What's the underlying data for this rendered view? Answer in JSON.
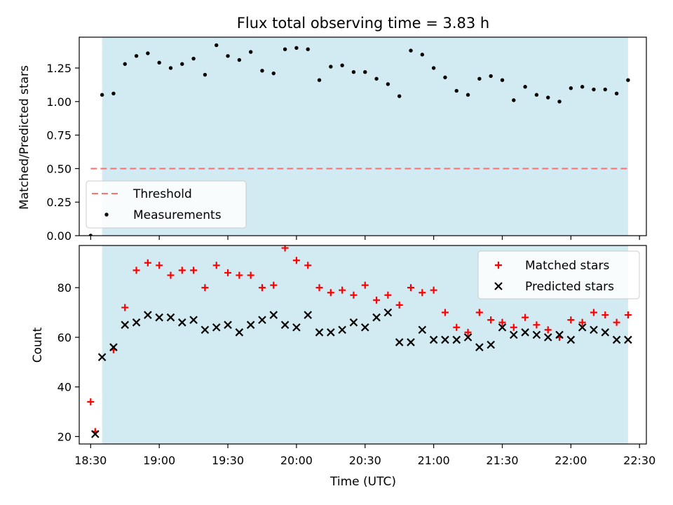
{
  "title": "Flux total observing time = 3.83 h",
  "xlabel": "Time (UTC)",
  "x_tick_labels": [
    "18:30",
    "19:00",
    "19:30",
    "20:00",
    "20:30",
    "21:00",
    "21:30",
    "22:00",
    "22:30"
  ],
  "colors": {
    "span": "#add8e6",
    "threshold": "#ff7070",
    "measurements": "#000000",
    "matched": "#ff0000",
    "predicted": "#000000"
  },
  "chart_data": [
    {
      "type": "scatter",
      "ylabel": "Matched/Predicted stars",
      "xlim": [
        "18:25",
        "22:33"
      ],
      "ylim": [
        0,
        1.48
      ],
      "y_ticks": [
        0.0,
        0.25,
        0.5,
        0.75,
        1.0,
        1.25
      ],
      "y_tick_labels": [
        "0.00",
        "0.25",
        "0.50",
        "0.75",
        "1.00",
        "1.25"
      ],
      "observing_span": [
        "18:35",
        "22:25"
      ],
      "threshold": {
        "name": "Threshold",
        "value": 0.5,
        "x": [
          "18:30",
          "22:25"
        ]
      },
      "legend": {
        "location": "lower left",
        "entries": [
          "Threshold",
          "Measurements"
        ]
      },
      "series": [
        {
          "name": "Measurements",
          "x": [
            "18:30",
            "18:35",
            "18:40",
            "18:45",
            "18:50",
            "18:55",
            "19:00",
            "19:05",
            "19:10",
            "19:15",
            "19:20",
            "19:25",
            "19:30",
            "19:35",
            "19:40",
            "19:45",
            "19:50",
            "19:55",
            "20:00",
            "20:05",
            "20:10",
            "20:15",
            "20:20",
            "20:25",
            "20:30",
            "20:35",
            "20:40",
            "20:45",
            "20:50",
            "20:55",
            "21:00",
            "21:05",
            "21:10",
            "21:15",
            "21:20",
            "21:25",
            "21:30",
            "21:35",
            "21:40",
            "21:45",
            "21:50",
            "21:55",
            "22:00",
            "22:05",
            "22:10",
            "22:15",
            "22:20",
            "22:25"
          ],
          "y": [
            0.0,
            1.05,
            1.06,
            1.28,
            1.34,
            1.36,
            1.29,
            1.25,
            1.28,
            1.32,
            1.2,
            1.42,
            1.34,
            1.31,
            1.37,
            1.23,
            1.21,
            1.39,
            1.4,
            1.39,
            1.16,
            1.26,
            1.27,
            1.22,
            1.22,
            1.17,
            1.13,
            1.04,
            1.38,
            1.35,
            1.25,
            1.18,
            1.08,
            1.05,
            1.17,
            1.19,
            1.16,
            1.01,
            1.11,
            1.05,
            1.03,
            1.0,
            1.1,
            1.11,
            1.09,
            1.09,
            1.06,
            1.16
          ]
        }
      ]
    },
    {
      "type": "scatter",
      "ylabel": "Count",
      "xlim": [
        "18:25",
        "22:33"
      ],
      "ylim": [
        17,
        97
      ],
      "y_ticks": [
        20,
        40,
        60,
        80
      ],
      "y_tick_labels": [
        "20",
        "40",
        "60",
        "80"
      ],
      "observing_span": [
        "18:35",
        "22:25"
      ],
      "legend": {
        "location": "upper right",
        "entries": [
          "Matched stars",
          "Predicted stars"
        ]
      },
      "series": [
        {
          "name": "Matched stars",
          "marker": "+",
          "x": [
            "18:30",
            "18:32",
            "18:40",
            "18:45",
            "18:50",
            "18:55",
            "19:00",
            "19:05",
            "19:10",
            "19:15",
            "19:20",
            "19:25",
            "19:30",
            "19:35",
            "19:40",
            "19:45",
            "19:50",
            "19:55",
            "20:00",
            "20:05",
            "20:10",
            "20:15",
            "20:20",
            "20:25",
            "20:30",
            "20:35",
            "20:40",
            "20:45",
            "20:50",
            "20:55",
            "21:00",
            "21:05",
            "21:10",
            "21:15",
            "21:20",
            "21:25",
            "21:30",
            "21:35",
            "21:40",
            "21:45",
            "21:50",
            "21:55",
            "22:00",
            "22:05",
            "22:10",
            "22:15",
            "22:20",
            "22:25"
          ],
          "y": [
            34,
            22,
            55,
            72,
            87,
            90,
            89,
            85,
            87,
            87,
            80,
            89,
            86,
            85,
            85,
            80,
            81,
            96,
            91,
            89,
            80,
            78,
            79,
            77,
            81,
            75,
            77,
            73,
            80,
            78,
            79,
            70,
            64,
            62,
            70,
            67,
            66,
            64,
            68,
            65,
            63,
            60,
            67,
            66,
            70,
            69,
            66,
            69
          ]
        },
        {
          "name": "Predicted stars",
          "marker": "x",
          "x": [
            "18:32",
            "18:35",
            "18:40",
            "18:45",
            "18:50",
            "18:55",
            "19:00",
            "19:05",
            "19:10",
            "19:15",
            "19:20",
            "19:25",
            "19:30",
            "19:35",
            "19:40",
            "19:45",
            "19:50",
            "19:55",
            "20:00",
            "20:05",
            "20:10",
            "20:15",
            "20:20",
            "20:25",
            "20:30",
            "20:35",
            "20:40",
            "20:45",
            "20:50",
            "20:55",
            "21:00",
            "21:05",
            "21:10",
            "21:15",
            "21:20",
            "21:25",
            "21:30",
            "21:35",
            "21:40",
            "21:45",
            "21:50",
            "21:55",
            "22:00",
            "22:05",
            "22:10",
            "22:15",
            "22:20",
            "22:25"
          ],
          "y": [
            21,
            52,
            56,
            65,
            66,
            69,
            68,
            68,
            66,
            67,
            63,
            64,
            65,
            62,
            65,
            67,
            69,
            65,
            64,
            69,
            62,
            62,
            63,
            66,
            64,
            68,
            70,
            58,
            58,
            63,
            59,
            59,
            59,
            60,
            56,
            57,
            64,
            61,
            62,
            61,
            60,
            61,
            59,
            64,
            63,
            62,
            59,
            59
          ]
        }
      ]
    }
  ]
}
